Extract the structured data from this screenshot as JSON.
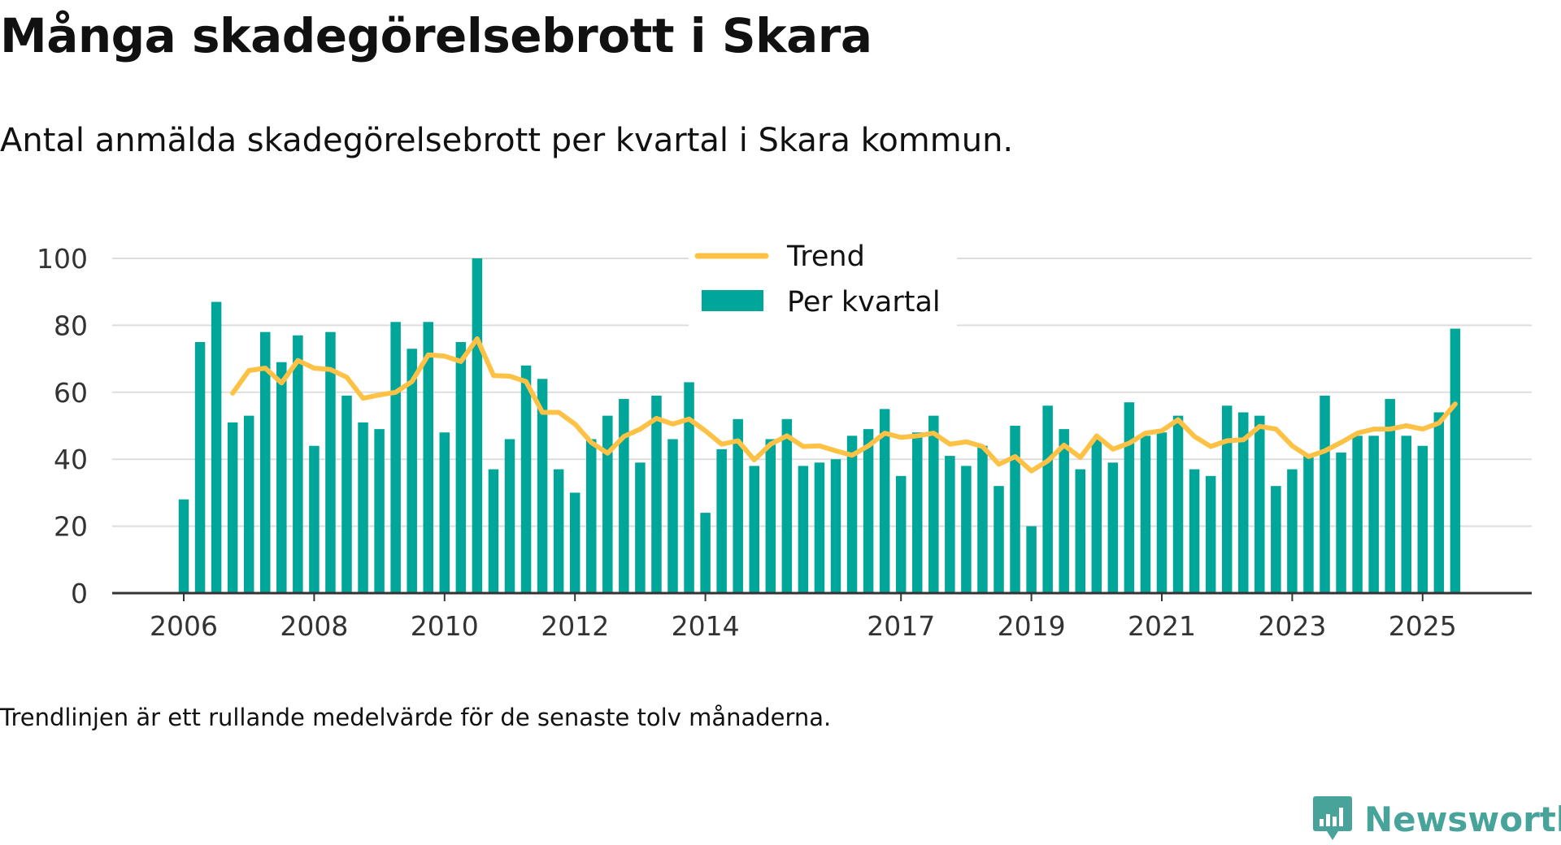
{
  "title": "Många skadegörelsebrott i Skara",
  "subtitle": "Antal anmälda skadegörelsebrott per kvartal i Skara kommun.",
  "footnote": "Trendlinjen är ett rullande medelvärde för de senaste tolv månaderna.",
  "brand": {
    "name": "Newsworthy",
    "icon": "newsworthy-logo-icon",
    "color": "#48a39b"
  },
  "colors": {
    "bar": "#00a699",
    "trend": "#fdc245",
    "grid": "#dddddd",
    "axis": "#333333"
  },
  "chart_data": {
    "type": "bar",
    "title": "Många skadegörelsebrott i Skara",
    "xlabel": "",
    "ylabel": "",
    "ylim": [
      0,
      100
    ],
    "yticks": [
      0,
      20,
      40,
      60,
      80,
      100
    ],
    "grid": true,
    "legend_position": "top-center",
    "x_tick_labels": [
      {
        "label": "2006",
        "index": 0
      },
      {
        "label": "2008",
        "index": 8
      },
      {
        "label": "2010",
        "index": 16
      },
      {
        "label": "2012",
        "index": 24
      },
      {
        "label": "2014",
        "index": 32
      },
      {
        "label": "2017",
        "index": 44
      },
      {
        "label": "2019",
        "index": 52
      },
      {
        "label": "2021",
        "index": 60
      },
      {
        "label": "2023",
        "index": 68
      },
      {
        "label": "2025",
        "index": 76
      }
    ],
    "series": [
      {
        "name": "Per kvartal",
        "type": "bar",
        "values": [
          28,
          75,
          87,
          51,
          53,
          78,
          69,
          77,
          44,
          78,
          59,
          51,
          49,
          81,
          73,
          81,
          48,
          75,
          100,
          37,
          46,
          68,
          64,
          37,
          30,
          46,
          53,
          58,
          39,
          59,
          46,
          63,
          24,
          43,
          52,
          38,
          46,
          52,
          38,
          39,
          40,
          47,
          49,
          55,
          35,
          48,
          53,
          41,
          38,
          44,
          32,
          50,
          20,
          56,
          49,
          37,
          46,
          39,
          57,
          47,
          48,
          53,
          37,
          35,
          56,
          54,
          53,
          32,
          37,
          41,
          59,
          42,
          47,
          47,
          58,
          47,
          44,
          54,
          79
        ]
      },
      {
        "name": "Trend",
        "type": "line",
        "start_index": 3,
        "values": [
          59.7,
          66.5,
          67.2,
          62.8,
          69.5,
          67.2,
          66.8,
          64.5,
          58.2,
          59.2,
          60,
          63.2,
          71.2,
          70.8,
          69.2,
          76,
          65,
          64.8,
          63.2,
          54,
          54,
          50.5,
          45,
          41.8,
          46.8,
          49,
          52.2,
          50.5,
          52,
          48.5,
          44.5,
          45.5,
          39.8,
          44.5,
          47,
          43.8,
          44,
          42.5,
          41.2,
          44,
          47.8,
          46.5,
          47,
          47.8,
          44.5,
          45.2,
          43.8,
          38.5,
          40.8,
          36.5,
          39.5,
          44.2,
          40.5,
          47,
          43,
          44.8,
          47.8,
          48.5,
          51.8,
          46.8,
          43.8,
          45.5,
          45.8,
          49.8,
          49,
          44,
          40.8,
          42.5,
          45,
          47.8,
          49,
          49,
          50,
          49,
          50.8,
          56.5
        ]
      }
    ]
  }
}
